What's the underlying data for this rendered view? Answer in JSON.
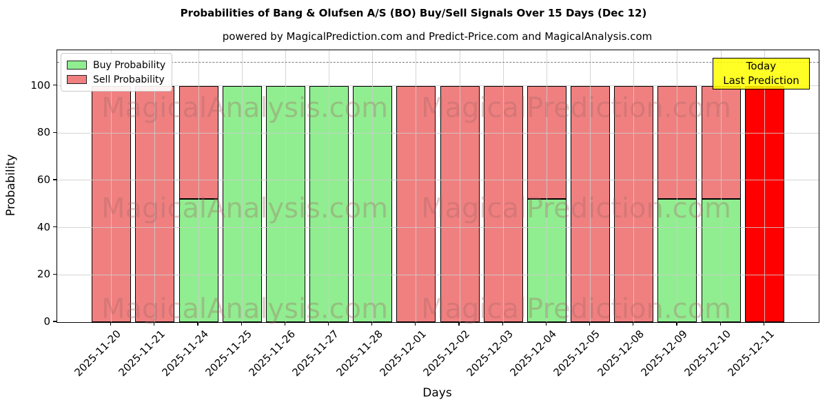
{
  "title": "Probabilities of Bang & Olufsen A/S (BO) Buy/Sell Signals Over 15 Days (Dec 12)",
  "subtitle": "powered by MagicalPrediction.com and Predict-Price.com and MagicalAnalysis.com",
  "axes": {
    "xlabel": "Days",
    "ylabel": "Probability",
    "yticks": [
      0,
      20,
      40,
      60,
      80,
      100
    ],
    "ylim": [
      0,
      115
    ]
  },
  "legend": [
    {
      "label": "Buy Probability",
      "color": "#90ee90"
    },
    {
      "label": "Sell Probability",
      "color": "#f08080"
    }
  ],
  "annotation": {
    "line1": "Today",
    "line2": "Last Prediction",
    "bg_color": "#ffff00",
    "border_color": "#000000"
  },
  "watermarks": {
    "left_text": "MagicalAnalysis.com",
    "right_text": "MagicalPrediction.com"
  },
  "threshold_line": {
    "y": 110,
    "style": "dashed",
    "color": "#7a7a7a"
  },
  "colors": {
    "buy": "#90ee90",
    "sell": "#f08080",
    "today": "#ff0000",
    "bar_edge": "#000000",
    "grid": "#cccccc"
  },
  "chart_data": {
    "type": "bar",
    "stacked": true,
    "title": "Probabilities of Bang & Olufsen A/S (BO) Buy/Sell Signals Over 15 Days (Dec 12)",
    "xlabel": "Days",
    "ylabel": "Probability",
    "ylim": [
      0,
      115
    ],
    "grid": true,
    "legend_position": "upper left",
    "categories": [
      "2025-11-20",
      "2025-11-21",
      "2025-11-24",
      "2025-11-25",
      "2025-11-26",
      "2025-11-27",
      "2025-11-28",
      "2025-12-01",
      "2025-12-02",
      "2025-12-03",
      "2025-12-04",
      "2025-12-05",
      "2025-12-08",
      "2025-12-09",
      "2025-12-10",
      "2025-12-11"
    ],
    "series": [
      {
        "name": "Buy Probability",
        "color": "#90ee90",
        "values": [
          0,
          0,
          52,
          100,
          100,
          100,
          100,
          0,
          0,
          0,
          52,
          0,
          0,
          52,
          52,
          0
        ]
      },
      {
        "name": "Sell Probability",
        "color": "#f08080",
        "values": [
          100,
          100,
          48,
          0,
          0,
          0,
          0,
          100,
          100,
          100,
          48,
          100,
          100,
          48,
          48,
          0
        ]
      }
    ],
    "today_bar": {
      "category": "2025-12-11",
      "value": 100,
      "color": "#ff0000",
      "label": "Today Last Prediction"
    },
    "dashed_line_y": 110
  }
}
